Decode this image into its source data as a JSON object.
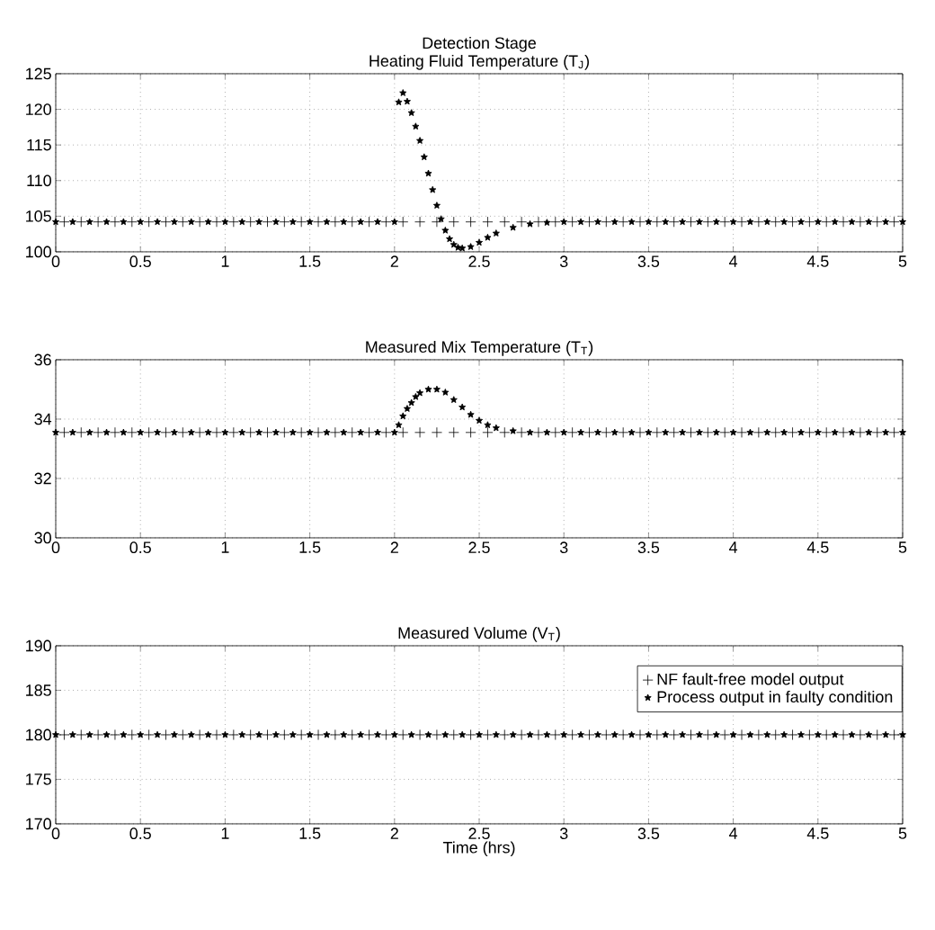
{
  "chart_data": [
    {
      "type": "scatter",
      "title": "Detection Stage",
      "subtitle": "Heating Fluid Temperature (T$_{J}$)",
      "xlim": [
        0,
        5
      ],
      "ylim": [
        100,
        125
      ],
      "xticks": [
        0,
        0.5,
        1,
        1.5,
        2,
        2.5,
        3,
        3.5,
        4,
        4.5,
        5
      ],
      "yticks": [
        100,
        105,
        110,
        115,
        120,
        125
      ],
      "grid": true,
      "series": [
        {
          "marker": "cross",
          "color": "#000000",
          "x": [
            0.05,
            0.15,
            0.25,
            0.35,
            0.45,
            0.55,
            0.65,
            0.75,
            0.85,
            0.95,
            1.05,
            1.15,
            1.25,
            1.35,
            1.45,
            1.55,
            1.65,
            1.75,
            1.85,
            1.95,
            2.05,
            2.15,
            2.25,
            2.35,
            2.45,
            2.55,
            2.65,
            2.75,
            2.85,
            2.95,
            3.05,
            3.15,
            3.25,
            3.35,
            3.45,
            3.55,
            3.65,
            3.75,
            3.85,
            3.95,
            4.05,
            4.15,
            4.25,
            4.35,
            4.45,
            4.55,
            4.65,
            4.75,
            4.85,
            4.95
          ],
          "values": [
            104.2,
            104.2,
            104.2,
            104.2,
            104.2,
            104.2,
            104.2,
            104.2,
            104.2,
            104.2,
            104.2,
            104.2,
            104.2,
            104.2,
            104.2,
            104.2,
            104.2,
            104.2,
            104.2,
            104.2,
            104.2,
            104.2,
            104.2,
            104.2,
            104.2,
            104.2,
            104.2,
            104.2,
            104.2,
            104.2,
            104.2,
            104.2,
            104.2,
            104.2,
            104.2,
            104.2,
            104.2,
            104.2,
            104.2,
            104.2,
            104.2,
            104.2,
            104.2,
            104.2,
            104.2,
            104.2,
            104.2,
            104.2,
            104.2,
            104.2
          ]
        },
        {
          "marker": "star",
          "color": "#000000",
          "x": [
            0,
            0.1,
            0.2,
            0.3,
            0.4,
            0.5,
            0.6,
            0.7,
            0.8,
            0.9,
            1,
            1.1,
            1.2,
            1.3,
            1.4,
            1.5,
            1.6,
            1.7,
            1.8,
            1.9,
            2,
            2.025,
            2.05,
            2.075,
            2.1,
            2.125,
            2.15,
            2.175,
            2.2,
            2.225,
            2.25,
            2.275,
            2.3,
            2.325,
            2.35,
            2.375,
            2.4,
            2.45,
            2.5,
            2.55,
            2.6,
            2.7,
            2.8,
            2.9,
            3,
            3.1,
            3.2,
            3.3,
            3.4,
            3.5,
            3.6,
            3.7,
            3.8,
            3.9,
            4,
            4.1,
            4.2,
            4.3,
            4.4,
            4.5,
            4.6,
            4.7,
            4.8,
            4.9,
            5
          ],
          "values": [
            104.2,
            104.2,
            104.2,
            104.2,
            104.2,
            104.2,
            104.2,
            104.2,
            104.2,
            104.2,
            104.2,
            104.2,
            104.2,
            104.2,
            104.2,
            104.2,
            104.2,
            104.2,
            104.2,
            104.2,
            104.2,
            121,
            122.3,
            121.1,
            119.5,
            117.6,
            115.6,
            113.3,
            111,
            108.7,
            106.5,
            104.6,
            103,
            101.8,
            101,
            100.6,
            100.5,
            100.7,
            101.3,
            102,
            102.6,
            103.4,
            103.9,
            104.1,
            104.2,
            104.2,
            104.2,
            104.2,
            104.2,
            104.2,
            104.2,
            104.2,
            104.2,
            104.2,
            104.2,
            104.2,
            104.2,
            104.2,
            104.2,
            104.2,
            104.2,
            104.2,
            104.2,
            104.2,
            104.2
          ]
        }
      ]
    },
    {
      "type": "scatter",
      "title": "Measured Mix Temperature (T$_{T}$)",
      "xlim": [
        0,
        5
      ],
      "ylim": [
        30,
        36
      ],
      "xticks": [
        0,
        0.5,
        1,
        1.5,
        2,
        2.5,
        3,
        3.5,
        4,
        4.5,
        5
      ],
      "yticks": [
        30,
        32,
        34,
        36
      ],
      "grid": true,
      "series": [
        {
          "marker": "cross",
          "color": "#000000",
          "x": [
            0.05,
            0.15,
            0.25,
            0.35,
            0.45,
            0.55,
            0.65,
            0.75,
            0.85,
            0.95,
            1.05,
            1.15,
            1.25,
            1.35,
            1.45,
            1.55,
            1.65,
            1.75,
            1.85,
            1.95,
            2.05,
            2.15,
            2.25,
            2.35,
            2.45,
            2.55,
            2.65,
            2.75,
            2.85,
            2.95,
            3.05,
            3.15,
            3.25,
            3.35,
            3.45,
            3.55,
            3.65,
            3.75,
            3.85,
            3.95,
            4.05,
            4.15,
            4.25,
            4.35,
            4.45,
            4.55,
            4.65,
            4.75,
            4.85,
            4.95
          ],
          "values": [
            33.55,
            33.55,
            33.55,
            33.55,
            33.55,
            33.55,
            33.55,
            33.55,
            33.55,
            33.55,
            33.55,
            33.55,
            33.55,
            33.55,
            33.55,
            33.55,
            33.55,
            33.55,
            33.55,
            33.55,
            33.55,
            33.55,
            33.55,
            33.55,
            33.55,
            33.55,
            33.55,
            33.55,
            33.55,
            33.55,
            33.55,
            33.55,
            33.55,
            33.55,
            33.55,
            33.55,
            33.55,
            33.55,
            33.55,
            33.55,
            33.55,
            33.55,
            33.55,
            33.55,
            33.55,
            33.55,
            33.55,
            33.55,
            33.55,
            33.55
          ]
        },
        {
          "marker": "star",
          "color": "#000000",
          "x": [
            0,
            0.1,
            0.2,
            0.3,
            0.4,
            0.5,
            0.6,
            0.7,
            0.8,
            0.9,
            1,
            1.1,
            1.2,
            1.3,
            1.4,
            1.5,
            1.6,
            1.7,
            1.8,
            1.9,
            2,
            2.025,
            2.05,
            2.075,
            2.1,
            2.125,
            2.15,
            2.2,
            2.25,
            2.3,
            2.35,
            2.4,
            2.45,
            2.5,
            2.55,
            2.6,
            2.7,
            2.8,
            2.9,
            3,
            3.1,
            3.2,
            3.3,
            3.4,
            3.5,
            3.6,
            3.7,
            3.8,
            3.9,
            4,
            4.1,
            4.2,
            4.3,
            4.4,
            4.5,
            4.6,
            4.7,
            4.8,
            4.9,
            5
          ],
          "values": [
            33.55,
            33.55,
            33.55,
            33.55,
            33.55,
            33.55,
            33.55,
            33.55,
            33.55,
            33.55,
            33.55,
            33.55,
            33.55,
            33.55,
            33.55,
            33.55,
            33.55,
            33.55,
            33.55,
            33.55,
            33.55,
            33.8,
            34.1,
            34.35,
            34.55,
            34.75,
            34.88,
            35,
            35,
            34.9,
            34.65,
            34.4,
            34.15,
            33.95,
            33.8,
            33.7,
            33.6,
            33.55,
            33.55,
            33.55,
            33.55,
            33.55,
            33.55,
            33.55,
            33.55,
            33.55,
            33.55,
            33.55,
            33.55,
            33.55,
            33.55,
            33.55,
            33.55,
            33.55,
            33.55,
            33.55,
            33.55,
            33.55,
            33.55,
            33.55
          ]
        }
      ]
    },
    {
      "type": "scatter",
      "title": "Measured Volume (V$_{T}$)",
      "xlabel": "Time (hrs)",
      "xlim": [
        0,
        5
      ],
      "ylim": [
        170,
        190
      ],
      "xticks": [
        0,
        0.5,
        1,
        1.5,
        2,
        2.5,
        3,
        3.5,
        4,
        4.5,
        5
      ],
      "yticks": [
        170,
        175,
        180,
        185,
        190
      ],
      "grid": true,
      "legend": "top right",
      "series": [
        {
          "name": "NF fault-free model output",
          "marker": "cross",
          "color": "#000000",
          "x": [
            0.05,
            0.15,
            0.25,
            0.35,
            0.45,
            0.55,
            0.65,
            0.75,
            0.85,
            0.95,
            1.05,
            1.15,
            1.25,
            1.35,
            1.45,
            1.55,
            1.65,
            1.75,
            1.85,
            1.95,
            2.05,
            2.15,
            2.25,
            2.35,
            2.45,
            2.55,
            2.65,
            2.75,
            2.85,
            2.95,
            3.05,
            3.15,
            3.25,
            3.35,
            3.45,
            3.55,
            3.65,
            3.75,
            3.85,
            3.95,
            4.05,
            4.15,
            4.25,
            4.35,
            4.45,
            4.55,
            4.65,
            4.75,
            4.85,
            4.95
          ],
          "values": [
            180,
            180,
            180,
            180,
            180,
            180,
            180,
            180,
            180,
            180,
            180,
            180,
            180,
            180,
            180,
            180,
            180,
            180,
            180,
            180,
            180,
            180,
            180,
            180,
            180,
            180,
            180,
            180,
            180,
            180,
            180,
            180,
            180,
            180,
            180,
            180,
            180,
            180,
            180,
            180,
            180,
            180,
            180,
            180,
            180,
            180,
            180,
            180,
            180,
            180
          ]
        },
        {
          "name": "Process output in faulty condition",
          "marker": "star",
          "color": "#000000",
          "x": [
            0,
            0.1,
            0.2,
            0.3,
            0.4,
            0.5,
            0.6,
            0.7,
            0.8,
            0.9,
            1,
            1.1,
            1.2,
            1.3,
            1.4,
            1.5,
            1.6,
            1.7,
            1.8,
            1.9,
            2,
            2.1,
            2.2,
            2.3,
            2.4,
            2.5,
            2.6,
            2.7,
            2.8,
            2.9,
            3,
            3.1,
            3.2,
            3.3,
            3.4,
            3.5,
            3.6,
            3.7,
            3.8,
            3.9,
            4,
            4.1,
            4.2,
            4.3,
            4.4,
            4.5,
            4.6,
            4.7,
            4.8,
            4.9,
            5
          ],
          "values": [
            180,
            180,
            180,
            180,
            180,
            180,
            180,
            180,
            180,
            180,
            180,
            180,
            180,
            180,
            180,
            180,
            180,
            180,
            180,
            180,
            180,
            180,
            180,
            180,
            180,
            180,
            180,
            180,
            180,
            180,
            180,
            180,
            180,
            180,
            180,
            180,
            180,
            180,
            180,
            180,
            180,
            180,
            180,
            180,
            180,
            180,
            180,
            180,
            180,
            180,
            180
          ]
        }
      ]
    }
  ]
}
